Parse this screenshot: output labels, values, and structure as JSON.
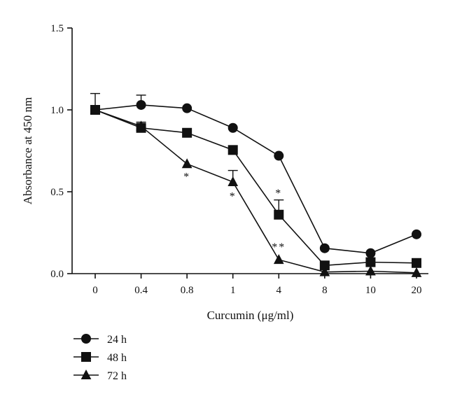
{
  "chart_data": {
    "type": "line",
    "xlabel": "Curcumin (μg/ml)",
    "ylabel": "Absorbance at 450 nm",
    "categories": [
      "0",
      "0.4",
      "0.8",
      "1",
      "4",
      "8",
      "10",
      "20"
    ],
    "ylim": [
      0.0,
      1.5
    ],
    "yticks": [
      "0.0",
      "0.5",
      "1.0",
      "1.5"
    ],
    "grid": false,
    "legend_position": "bottom-left",
    "series": [
      {
        "name": "24 h",
        "marker": "circle",
        "values": [
          1.0,
          1.03,
          1.01,
          0.89,
          0.72,
          0.155,
          0.125,
          0.24
        ],
        "errors": [
          0.1,
          0.06,
          0.0,
          0.0,
          0.0,
          0.0,
          0.0,
          0.0
        ]
      },
      {
        "name": "48 h",
        "marker": "square",
        "values": [
          1.0,
          0.89,
          0.86,
          0.755,
          0.36,
          0.05,
          0.07,
          0.065
        ],
        "errors": [
          0.0,
          0.035,
          0.0,
          0.0,
          0.09,
          0.0,
          0.0,
          0.0
        ]
      },
      {
        "name": "72 h",
        "marker": "triangle",
        "values": [
          1.0,
          0.9,
          0.67,
          0.56,
          0.085,
          0.01,
          0.015,
          0.005
        ],
        "errors": [
          0.0,
          0.0,
          0.0,
          0.07,
          0.0,
          0.0,
          0.0,
          0.0
        ]
      }
    ],
    "annotations": [
      {
        "text": "*",
        "category_index": 2,
        "y": 0.57
      },
      {
        "text": "*",
        "category_index": 3,
        "y": 0.45
      },
      {
        "text": "*",
        "category_index": 4,
        "y": 0.47
      },
      {
        "text": "**",
        "category_index": 4,
        "y": 0.14
      }
    ]
  }
}
